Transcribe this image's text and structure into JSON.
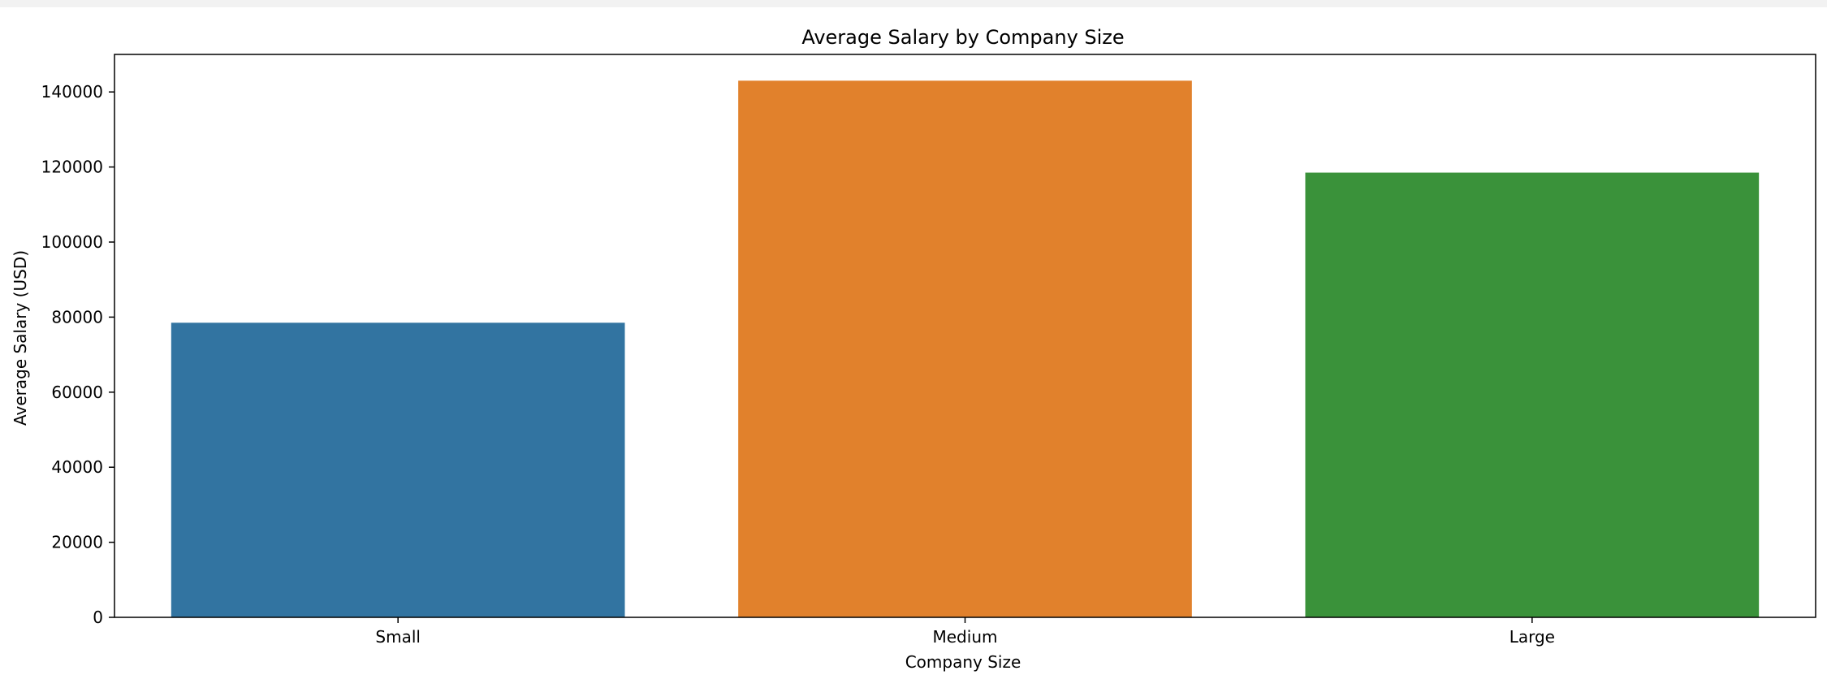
{
  "chart_data": {
    "type": "bar",
    "title": "Average Salary by Company Size",
    "xlabel": "Company Size",
    "ylabel": "Average Salary (USD)",
    "categories": [
      "Small",
      "Medium",
      "Large"
    ],
    "values": [
      78500,
      143000,
      118500
    ],
    "colors": [
      "#3274a1",
      "#e1812c",
      "#3a923a"
    ],
    "ylim": [
      0,
      150000
    ],
    "yticks": [
      0,
      20000,
      40000,
      60000,
      80000,
      100000,
      120000,
      140000
    ],
    "ytick_labels": [
      "0",
      "20000",
      "40000",
      "60000",
      "80000",
      "100000",
      "120000",
      "140000"
    ],
    "grid": false,
    "legend": "none"
  }
}
